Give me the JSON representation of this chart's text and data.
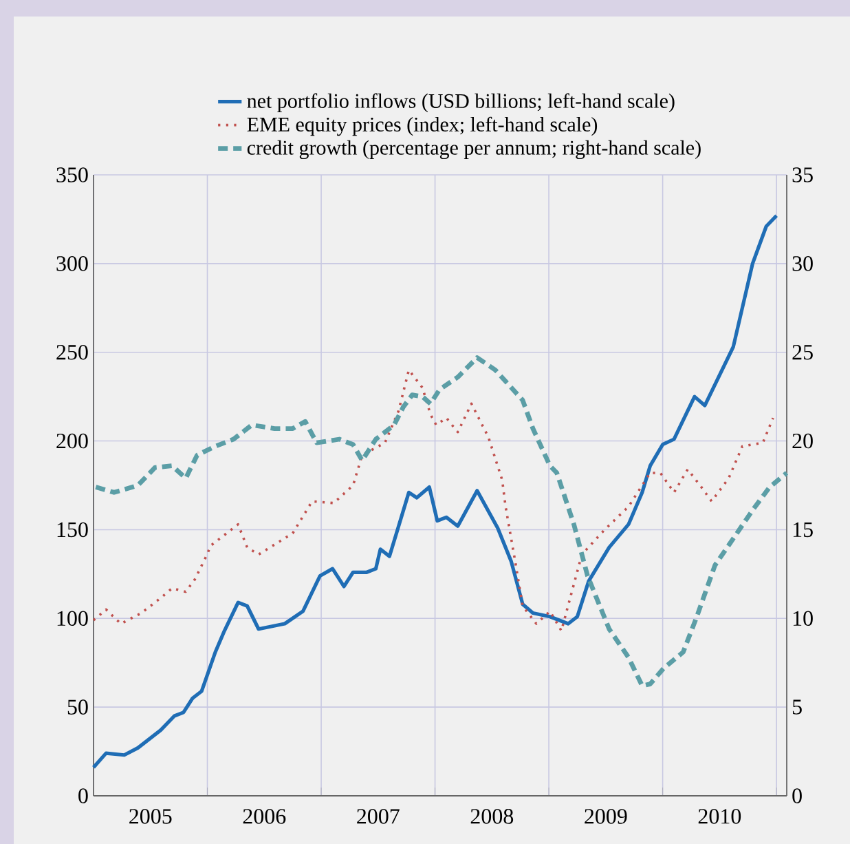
{
  "chart_data": {
    "type": "line",
    "legend": "top",
    "grid": true,
    "xlim": [
      2005,
      2011.09
    ],
    "xticks": [
      {
        "value": 2005,
        "label": null
      },
      {
        "value": 2005.5,
        "label": "2005"
      },
      {
        "value": 2006,
        "label": null
      },
      {
        "value": 2006.5,
        "label": "2006"
      },
      {
        "value": 2007,
        "label": null
      },
      {
        "value": 2007.5,
        "label": "2007"
      },
      {
        "value": 2008,
        "label": null
      },
      {
        "value": 2008.5,
        "label": "2008"
      },
      {
        "value": 2009,
        "label": null
      },
      {
        "value": 2009.5,
        "label": "2009"
      },
      {
        "value": 2010,
        "label": null
      },
      {
        "value": 2010.5,
        "label": "2010"
      },
      {
        "value": 2011,
        "label": null
      }
    ],
    "ylim": [
      0,
      350
    ],
    "yticks": [
      0,
      50,
      100,
      150,
      200,
      250,
      300,
      350
    ],
    "y2lim": [
      0,
      35
    ],
    "y2ticks": [
      0,
      5,
      10,
      15,
      20,
      25,
      30,
      35
    ],
    "series": [
      {
        "name": "net portfolio inflows (USD billions; left-hand scale)",
        "color": "#1f6db5",
        "line_style": "solid",
        "x": [
          2005.0,
          2005.11,
          2005.27,
          2005.39,
          2005.59,
          2005.71,
          2005.79,
          2005.87,
          2005.95,
          2006.07,
          2006.15,
          2006.27,
          2006.35,
          2006.45,
          2006.68,
          2006.84,
          2006.99,
          2007.1,
          2007.2,
          2007.28,
          2007.4,
          2007.48,
          2007.52,
          2007.6,
          2007.77,
          2007.84,
          2007.95,
          2008.02,
          2008.1,
          2008.2,
          2008.37,
          2008.55,
          2008.67,
          2008.77,
          2008.86,
          2009.01,
          2009.17,
          2009.25,
          2009.35,
          2009.53,
          2009.7,
          2009.82,
          2009.89,
          2010.0,
          2010.1,
          2010.28,
          2010.37,
          2010.62,
          2010.79,
          2010.91,
          2011.0
        ],
        "values": [
          16,
          24,
          23,
          27,
          37,
          45,
          47,
          55,
          59,
          81,
          93,
          109,
          107,
          94,
          97,
          104,
          124,
          128,
          118,
          126,
          126,
          128,
          139,
          135,
          171,
          168,
          174,
          155,
          157,
          152,
          172,
          151,
          132,
          108,
          103,
          101,
          97,
          101,
          121,
          140,
          153,
          171,
          186,
          198,
          201,
          225,
          220,
          253,
          300,
          321,
          327
        ]
      },
      {
        "name": "EME equity prices (index; left-hand scale)",
        "color": "#c0504d",
        "line_style": "dotted",
        "x": [
          2005.0,
          2005.11,
          2005.24,
          2005.42,
          2005.6,
          2005.69,
          2005.81,
          2005.89,
          2005.99,
          2006.03,
          2006.27,
          2006.35,
          2006.45,
          2006.75,
          2006.92,
          2007.11,
          2007.28,
          2007.36,
          2007.56,
          2007.68,
          2007.77,
          2007.89,
          2007.96,
          2008.01,
          2008.1,
          2008.2,
          2008.32,
          2008.47,
          2008.59,
          2008.62,
          2008.71,
          2008.77,
          2008.89,
          2009.01,
          2009.11,
          2009.29,
          2009.49,
          2009.7,
          2009.89,
          2009.98,
          2010.1,
          2010.22,
          2010.34,
          2010.43,
          2010.58,
          2010.7,
          2010.88,
          2010.97
        ],
        "values": [
          99,
          105,
          97,
          103,
          112,
          117,
          115,
          122,
          135,
          141,
          153,
          140,
          136,
          148,
          166,
          165,
          175,
          192,
          199,
          217,
          240,
          230,
          215,
          209,
          213,
          205,
          221,
          202,
          178,
          163,
          130,
          107,
          97,
          104,
          93,
          136,
          150,
          163,
          182,
          182,
          171,
          184,
          174,
          166,
          179,
          197,
          199,
          213
        ]
      },
      {
        "name": "credit growth (percentage per annum; right-hand scale)",
        "color": "#5b9ea6",
        "line_style": "dashed",
        "axis": "y2",
        "x": [
          2005.02,
          2005.18,
          2005.39,
          2005.54,
          2005.69,
          2005.81,
          2005.91,
          2006.07,
          2006.23,
          2006.39,
          2006.59,
          2006.75,
          2006.86,
          2006.96,
          2007.16,
          2007.28,
          2007.36,
          2007.48,
          2007.64,
          2007.72,
          2007.8,
          2007.89,
          2007.96,
          2008.04,
          2008.2,
          2008.37,
          2008.53,
          2008.77,
          2008.86,
          2009.01,
          2009.07,
          2009.22,
          2009.34,
          2009.53,
          2009.7,
          2009.82,
          2009.89,
          2010.01,
          2010.18,
          2010.3,
          2010.46,
          2010.62,
          2010.79,
          2010.94,
          2011.09
        ],
        "values": [
          17.4,
          17.1,
          17.5,
          18.5,
          18.6,
          17.9,
          19.2,
          19.7,
          20.1,
          20.9,
          20.7,
          20.7,
          21.1,
          19.9,
          20.1,
          19.8,
          18.9,
          20.1,
          20.9,
          21.9,
          22.6,
          22.5,
          22.1,
          22.9,
          23.6,
          24.7,
          24.0,
          22.3,
          20.7,
          18.6,
          18.2,
          15.3,
          12.4,
          9.4,
          7.8,
          6.2,
          6.3,
          7.2,
          8.1,
          10.1,
          13.0,
          14.5,
          16.1,
          17.4,
          18.2
        ]
      }
    ]
  }
}
